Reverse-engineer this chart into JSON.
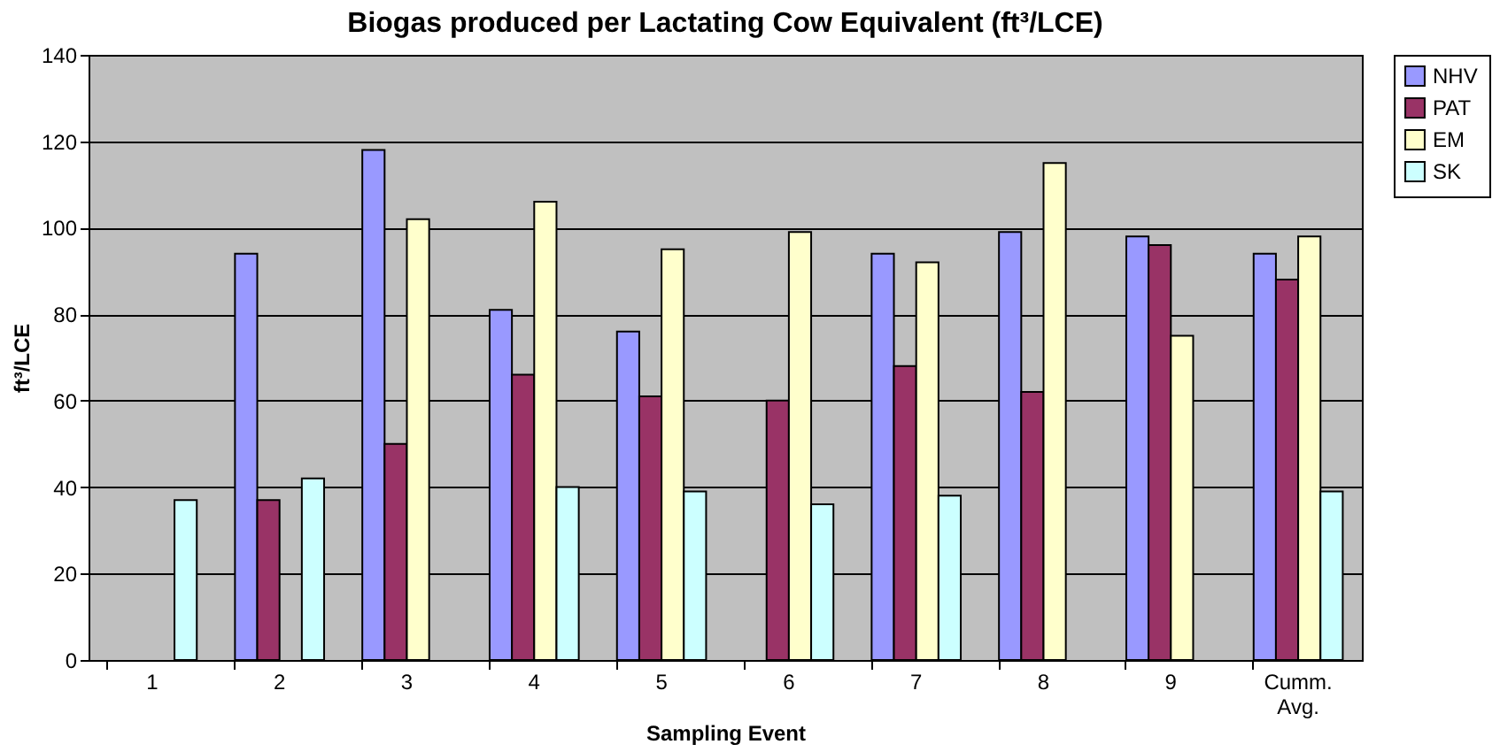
{
  "chart_data": {
    "type": "bar",
    "title": "Biogas produced per Lactating Cow Equivalent (ft³/LCE)",
    "xlabel": "Sampling Event",
    "ylabel": "ft³/LCE",
    "categories": [
      "1",
      "2",
      "3",
      "4",
      "5",
      "6",
      "7",
      "8",
      "9",
      "Cumm. Avg."
    ],
    "series": [
      {
        "name": "NHV",
        "color": "#9999ff",
        "values": [
          null,
          94,
          118,
          81,
          76,
          null,
          94,
          99,
          98,
          94
        ]
      },
      {
        "name": "PAT",
        "color": "#993366",
        "values": [
          null,
          37,
          50,
          66,
          61,
          60,
          68,
          62,
          96,
          88
        ]
      },
      {
        "name": "EM",
        "color": "#ffffcc",
        "values": [
          null,
          null,
          102,
          106,
          95,
          99,
          92,
          115,
          75,
          98
        ]
      },
      {
        "name": "SK",
        "color": "#ccffff",
        "values": [
          37,
          42,
          null,
          40,
          39,
          36,
          38,
          null,
          null,
          39
        ]
      }
    ],
    "ylim": [
      0,
      140
    ],
    "yticks": [
      0,
      20,
      40,
      60,
      80,
      100,
      120,
      140
    ],
    "grid": "y",
    "legend": "right"
  }
}
